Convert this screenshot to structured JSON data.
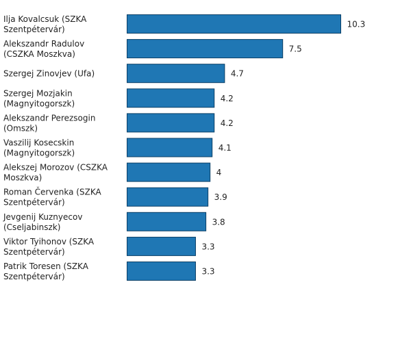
{
  "chart_data": {
    "type": "bar",
    "orientation": "horizontal",
    "title": "",
    "xlabel": "",
    "ylabel": "",
    "xlim": [
      0,
      10.3
    ],
    "grid": false,
    "bar_color": "#1f77b4",
    "categories": [
      [
        "Ilja Kovalcsuk (SZKA",
        "Szentpétervár)"
      ],
      [
        "Alekszandr Radulov",
        "(CSZKA Moszkva)"
      ],
      [
        "Szergej Zinovjev (Ufa)"
      ],
      [
        "Szergej Mozjakin",
        "(Magnyitogorszk)"
      ],
      [
        "Alekszandr Perezsogin",
        "(Omszk)"
      ],
      [
        "Vaszilij Kosecskin",
        "(Magnyitogorszk)"
      ],
      [
        "Alekszej Morozov (CSZKA",
        "Moszkva)"
      ],
      [
        "Roman Červenka (SZKA",
        "Szentpétervár)"
      ],
      [
        "Jevgenij Kuznyecov",
        "(Cseljabinszk)"
      ],
      [
        "Viktor Tyihonov (SZKA",
        "Szentpétervár)"
      ],
      [
        "Patrik Toresen (SZKA",
        "Szentpétervár)"
      ]
    ],
    "values": [
      10.3,
      7.5,
      4.7,
      4.2,
      4.2,
      4.1,
      4,
      3.9,
      3.8,
      3.3,
      3.3
    ],
    "value_labels": [
      "10.3",
      "7.5",
      "4.7",
      "4.2",
      "4.2",
      "4.1",
      "4",
      "3.9",
      "3.8",
      "3.3",
      "3.3"
    ]
  }
}
